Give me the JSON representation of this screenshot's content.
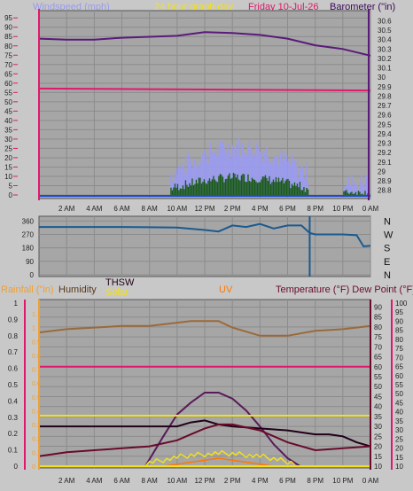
{
  "colors": {
    "bg": "#c8c8c8",
    "plot": "#a6a6a6",
    "grid": "#8c8c8c",
    "pink": "#e0186c",
    "orange": "#f0a030",
    "yellow": "#f0e020",
    "purple": "#5a1a7a",
    "blue": "#1a4ad8",
    "lightblue": "#9a9af0",
    "green": "#1a5a1a",
    "darkblue": "#1a5a90",
    "brown": "#8a5a2a",
    "maroon": "#6a0a2a",
    "uv": "#ff7700",
    "thsw": "#200018"
  },
  "header": {
    "windspeed": "Windspeed (mph)",
    "graphday": "24 hour graph day",
    "date": "Friday 10-Jul-26",
    "barometer": "Barometer (\"in)"
  },
  "wind_dir_labels": [
    "N",
    "W",
    "S",
    "E",
    "N"
  ],
  "legend2": {
    "rainfall": "Rainfall (\"in)",
    "humidity": "Humidity",
    "thsw": "THSW",
    "solar": "Solar",
    "uv": "UV",
    "temperature": "Temperature (°F) Dew Point (°F)"
  },
  "chart_data": [
    {
      "type": "line",
      "title": "Windspeed / Barometer",
      "x_ticks": [
        "2 AM",
        "4 AM",
        "6 AM",
        "8 AM",
        "10 AM",
        "12 PM",
        "2 PM",
        "4 PM",
        "6 PM",
        "8 PM",
        "10 PM",
        "0 AM"
      ],
      "y_left_ticks": [
        95,
        90,
        85,
        80,
        75,
        70,
        65,
        60,
        55,
        50,
        45,
        40,
        35,
        30,
        25,
        20,
        15,
        10,
        5,
        0
      ],
      "y_right_ticks": [
        "30.6",
        "30.5",
        "30.4",
        "30.3",
        "30.2",
        "30.1",
        "30",
        "29.9",
        "29.8",
        "29.7",
        "29.6",
        "29.5",
        "29.4",
        "29.3",
        "29.2",
        "29.1",
        "29",
        "28.9",
        "28.8"
      ],
      "ylim_left": [
        0,
        97
      ],
      "ylim_right": [
        28.75,
        30.67
      ],
      "series": [
        {
          "name": "Barometer",
          "axis": "right",
          "x": [
            0,
            2,
            4,
            6,
            8,
            10,
            12,
            14,
            16,
            18,
            20,
            22,
            24
          ],
          "values": [
            30.41,
            30.4,
            30.4,
            30.42,
            30.43,
            30.44,
            30.48,
            30.47,
            30.45,
            30.41,
            30.34,
            30.3,
            30.23
          ]
        },
        {
          "axis": "right",
          "x": [
            0,
            24
          ],
          "values": [
            29.88,
            29.86
          ]
        }
      ]
    },
    {
      "type": "line",
      "title": "Wind direction",
      "x_ticks": [
        "2 AM",
        "4 AM",
        "6 AM",
        "8 AM",
        "10 AM",
        "12 PM",
        "2 PM",
        "4 PM",
        "6 PM",
        "8 PM",
        "10 PM",
        "0 AM"
      ],
      "y_ticks": [
        360,
        270,
        180,
        90,
        0
      ],
      "ylim": [
        0,
        380
      ],
      "series": [
        {
          "name": "Wind direction",
          "x": [
            0,
            2,
            4,
            6,
            8,
            10,
            12,
            13,
            14,
            15,
            16,
            17,
            18,
            19,
            19.6,
            20,
            22,
            23,
            23.5,
            24
          ],
          "values": [
            320,
            320,
            320,
            320,
            318,
            316,
            300,
            290,
            330,
            320,
            340,
            310,
            330,
            330,
            280,
            270,
            270,
            265,
            190,
            195
          ]
        }
      ]
    },
    {
      "type": "line",
      "title": "Rain / Humidity / Solar / UV / Temperature",
      "x_ticks": [
        "2 AM",
        "4 AM",
        "6 AM",
        "8 AM",
        "10 AM",
        "12 PM",
        "2 PM",
        "4 PM",
        "6 PM",
        "8 PM",
        "10 PM",
        "0 AM"
      ],
      "y_rain_ticks": [
        "1",
        "0.9",
        "0.8",
        "0.7",
        "0.6",
        "0.5",
        "0.4",
        "0.3",
        "0.2",
        "0.1",
        "0"
      ],
      "y_hum_ticks": [
        100,
        90,
        80,
        70,
        60,
        50,
        40,
        30,
        20,
        10,
        0
      ],
      "y_uv_ticks": [
        "1.1",
        "1",
        "0.9",
        "0.8",
        "0.7",
        "0.6",
        "0.5",
        "0.4",
        "0.3",
        "0.2",
        "0.1",
        "0"
      ],
      "y_temp_ticks": [
        90,
        85,
        80,
        75,
        70,
        65,
        60,
        55,
        50,
        45,
        40,
        35,
        30,
        25,
        20,
        15,
        10
      ],
      "y_dew_ticks": [
        100,
        95,
        90,
        85,
        80,
        75,
        70,
        65,
        60,
        55,
        50,
        45,
        40,
        35,
        30,
        25,
        20,
        15,
        10
      ],
      "ylim_temp": [
        10,
        92
      ],
      "series": [
        {
          "name": "Humidity",
          "x": [
            0,
            2,
            4,
            6,
            8,
            10,
            11,
            12,
            13,
            14,
            16,
            18,
            20,
            22,
            23,
            24
          ],
          "values": [
            82,
            84,
            85,
            86,
            86,
            88,
            89,
            89,
            89,
            85,
            80,
            80,
            83,
            84,
            85,
            86
          ]
        },
        {
          "name": "Temperature",
          "x": [
            0,
            24
          ],
          "values": [
            60,
            60
          ]
        },
        {
          "name": "Dew Point",
          "x": [
            0,
            2,
            4,
            6,
            8,
            10,
            11,
            12,
            13,
            14,
            16,
            18,
            20,
            22,
            24
          ],
          "values": [
            15,
            17,
            18,
            19,
            20,
            23,
            26,
            29,
            31,
            31,
            28,
            22,
            18,
            19,
            20
          ]
        },
        {
          "name": "THSW",
          "x": [
            0,
            2,
            4,
            6,
            8,
            10,
            11,
            12,
            13,
            14,
            16,
            18,
            19,
            20,
            21,
            22,
            23,
            24
          ],
          "values": [
            30,
            30,
            30,
            30,
            30,
            30,
            32,
            33,
            31,
            30,
            29,
            28,
            27,
            26,
            26,
            25,
            22,
            20
          ]
        },
        {
          "name": "Solar",
          "x": [
            7.7,
            9,
            10,
            11,
            12,
            13,
            14,
            15,
            16,
            17,
            18,
            18.9
          ],
          "values": [
            10,
            25,
            36,
            42,
            47,
            47,
            44,
            38,
            30,
            21,
            14,
            10
          ]
        },
        {
          "name": "UV",
          "x": [
            9,
            10,
            11,
            12,
            13,
            14,
            15,
            16,
            17
          ],
          "values": [
            10,
            11,
            12,
            13,
            14,
            13,
            12,
            11,
            10
          ]
        }
      ]
    }
  ]
}
